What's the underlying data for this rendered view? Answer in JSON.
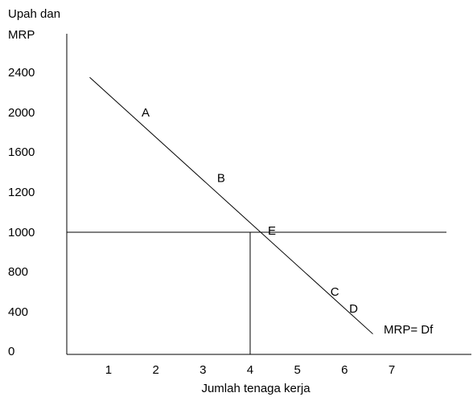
{
  "chart_data": {
    "type": "line",
    "y_title_line1": "Upah dan",
    "y_title_line2": "MRP",
    "xlabel": "Jumlah tenaga kerja",
    "x_ticks": [
      "1",
      "2",
      "3",
      "4",
      "5",
      "6",
      "7"
    ],
    "y_ticks": [
      "0",
      "400",
      "800",
      "1000",
      "1200",
      "1600",
      "2000",
      "2400"
    ],
    "series": [
      {
        "name": "MRP= Df",
        "x": [
          0.6,
          6.6
        ],
        "y": [
          2350,
          175
        ]
      }
    ],
    "wage_line_y": 1000,
    "equilibrium": {
      "label": "E",
      "x": 4,
      "y": 1000
    },
    "points": [
      {
        "label": "A",
        "x": 1.7,
        "y": 1960
      },
      {
        "label": "B",
        "x": 3.3,
        "y": 1300
      },
      {
        "label": "C",
        "x": 5.7,
        "y": 560
      },
      {
        "label": "D",
        "x": 6.1,
        "y": 390
      }
    ]
  }
}
